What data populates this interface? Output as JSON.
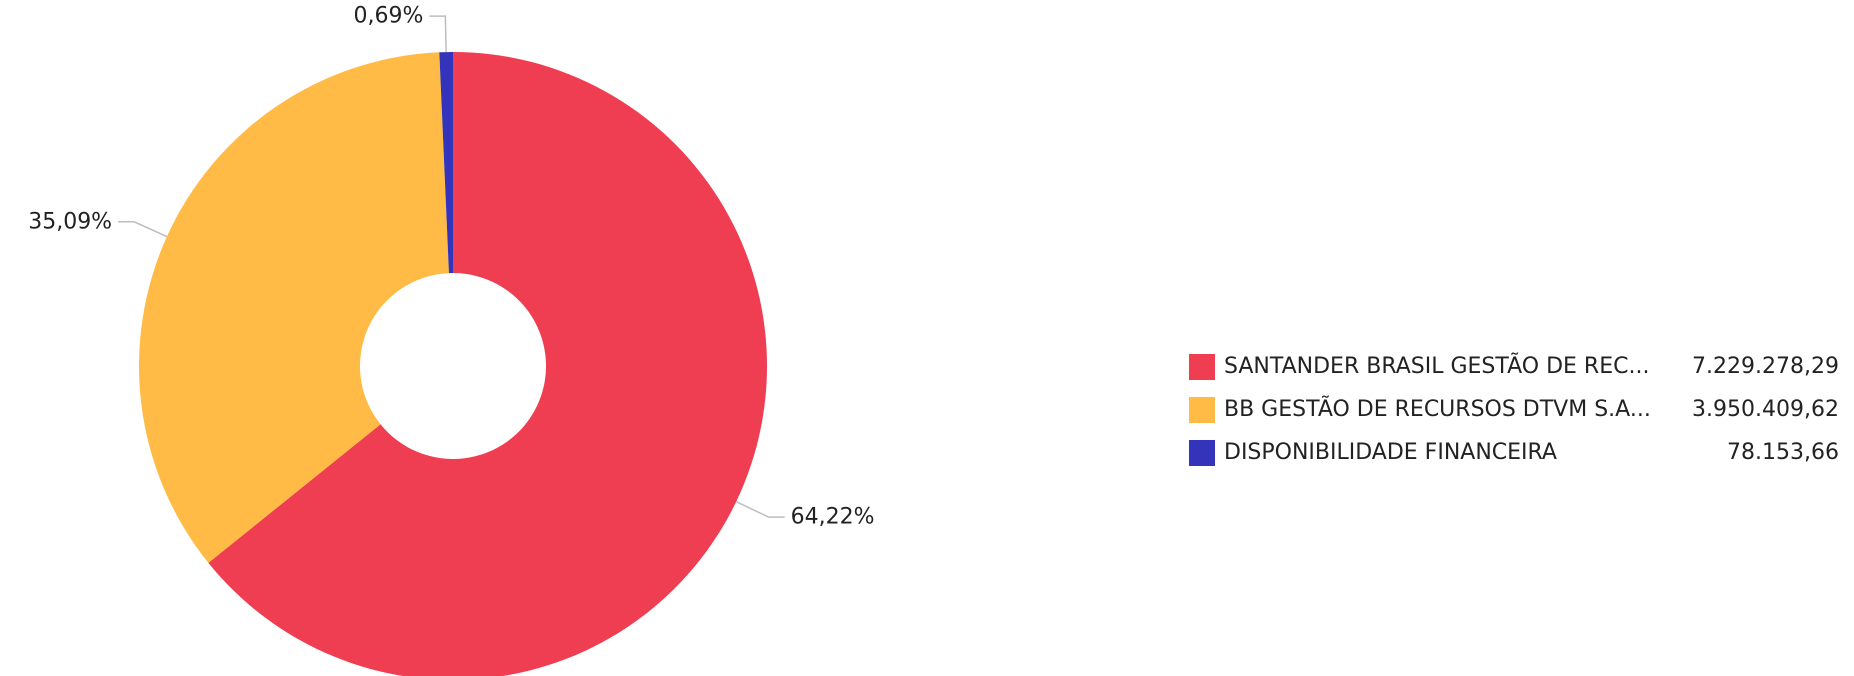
{
  "chart_data": {
    "type": "pie",
    "donut": true,
    "title": "",
    "legend_position": "right",
    "start_angle_deg": 0,
    "slices": [
      {
        "name": "SANTANDER BRASIL GESTÃO DE REC...",
        "value": 7229278.29,
        "value_label": "7.229.278,29",
        "percent": 64.22,
        "percent_label": "64,22%",
        "color": "#EF3D51"
      },
      {
        "name": "BB GESTÃO DE RECURSOS DTVM S.A...",
        "value": 3950409.62,
        "value_label": "3.950.409,62",
        "percent": 35.09,
        "percent_label": "35,09%",
        "color": "#FFBB45"
      },
      {
        "name": "DISPONIBILIDADE FINANCEIRA",
        "value": 78153.66,
        "value_label": "78.153,66",
        "percent": 0.69,
        "percent_label": "0,69%",
        "color": "#3334BA"
      }
    ]
  }
}
